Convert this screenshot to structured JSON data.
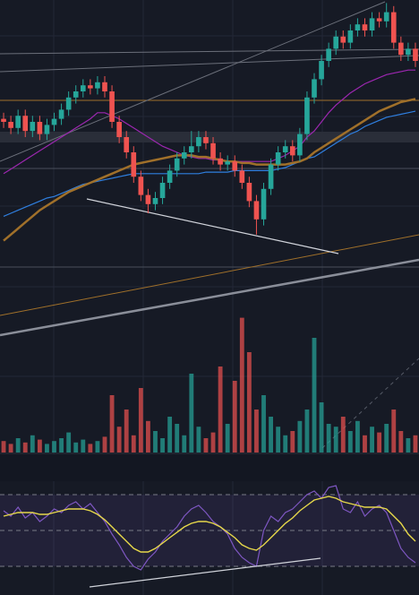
{
  "chart_data": {
    "type": "candlestick",
    "up_color": "#26a69a",
    "down_color": "#ef5350",
    "ylim": [
      0,
      100
    ],
    "open": [
      61,
      60,
      58,
      62,
      57,
      60,
      56,
      59,
      61,
      64,
      68,
      70,
      72,
      71,
      73,
      70,
      60,
      55,
      50,
      42,
      36,
      33,
      35,
      40,
      44,
      48,
      50,
      52,
      55,
      53,
      48,
      46,
      47,
      44,
      40,
      34,
      28,
      38,
      46,
      50,
      52,
      49,
      56,
      68,
      74,
      80,
      84,
      88,
      86,
      90,
      92,
      90,
      94,
      93,
      96,
      86,
      82,
      84
    ],
    "high": [
      63,
      62,
      64,
      64,
      62,
      62,
      61,
      63,
      66,
      70,
      72,
      74,
      74,
      75,
      75,
      72,
      62,
      57,
      52,
      44,
      38,
      37,
      42,
      46,
      50,
      52,
      57,
      57,
      57,
      55,
      50,
      49,
      49,
      46,
      42,
      36,
      40,
      48,
      52,
      54,
      54,
      58,
      70,
      76,
      82,
      86,
      90,
      90,
      92,
      94,
      94,
      96,
      96,
      99,
      98,
      88,
      86,
      86
    ],
    "low": [
      58,
      56,
      56,
      55,
      55,
      54,
      54,
      57,
      59,
      62,
      66,
      68,
      69,
      69,
      68,
      58,
      53,
      48,
      40,
      34,
      30,
      31,
      33,
      38,
      42,
      46,
      48,
      50,
      51,
      46,
      44,
      44,
      42,
      38,
      32,
      23,
      26,
      36,
      44,
      48,
      47,
      47,
      54,
      66,
      72,
      78,
      82,
      84,
      84,
      88,
      88,
      88,
      91,
      91,
      84,
      80,
      80,
      78
    ],
    "close": [
      60,
      58,
      62,
      57,
      60,
      56,
      59,
      61,
      64,
      68,
      70,
      72,
      71,
      73,
      70,
      60,
      55,
      50,
      42,
      36,
      33,
      35,
      40,
      44,
      48,
      50,
      52,
      55,
      53,
      48,
      46,
      47,
      44,
      40,
      34,
      28,
      38,
      46,
      50,
      52,
      49,
      56,
      68,
      74,
      80,
      84,
      88,
      86,
      90,
      92,
      90,
      94,
      93,
      96,
      86,
      82,
      84,
      80
    ],
    "series": [
      {
        "color": "#9c27b0",
        "values": [
          43,
          44.5,
          46,
          47.5,
          49,
          50.5,
          52,
          53.5,
          55,
          56.5,
          58,
          59.5,
          61,
          63,
          63,
          62,
          61,
          59.5,
          58,
          56.5,
          55,
          53.5,
          52,
          51,
          50,
          49,
          48.5,
          48,
          48,
          47.5,
          47.5,
          47,
          47,
          47,
          47,
          47,
          47,
          47,
          48,
          49,
          50.5,
          52,
          55,
          57,
          60,
          63,
          65.5,
          67.5,
          69.5,
          71,
          72.5,
          73.5,
          74.5,
          75.5,
          76,
          76.5,
          77,
          77
        ]
      },
      {
        "color": "#2f7fe0",
        "values": [
          29,
          30,
          31,
          32,
          33,
          34,
          35,
          35.5,
          36.5,
          37.5,
          38.5,
          39.5,
          40,
          40.5,
          41,
          41.5,
          42,
          42.5,
          43,
          43,
          43,
          43,
          43,
          43,
          43,
          43,
          43,
          43,
          43.5,
          43.5,
          43.5,
          43.5,
          44,
          44,
          44,
          44,
          44,
          44,
          44.5,
          45,
          46,
          47,
          48,
          48.5,
          50,
          51.5,
          53,
          54.5,
          56,
          57,
          58.5,
          59.5,
          60.5,
          61.5,
          62,
          62.5,
          63,
          63.5
        ]
      },
      {
        "color": "#a0702a",
        "values": [
          21,
          23,
          25,
          27,
          29,
          31,
          32.5,
          34,
          35.5,
          37,
          38,
          39,
          40,
          41,
          42,
          43,
          44,
          45,
          46,
          46.5,
          47,
          47.5,
          48,
          48.5,
          49,
          49,
          49,
          48.5,
          48.5,
          48,
          47.5,
          47,
          47,
          46.5,
          46.5,
          46,
          46,
          46,
          46,
          46,
          46.5,
          47,
          48,
          50,
          51.5,
          53,
          54.5,
          56,
          57.5,
          59,
          60.5,
          62,
          63.5,
          64.5,
          65.5,
          66.5,
          67,
          67.5
        ]
      }
    ],
    "volume": {
      "ylim": [
        0,
        100
      ],
      "values": [
        8,
        6,
        10,
        7,
        12,
        9,
        6,
        8,
        10,
        14,
        7,
        9,
        6,
        8,
        11,
        40,
        18,
        30,
        12,
        45,
        22,
        15,
        10,
        25,
        20,
        12,
        55,
        18,
        10,
        14,
        60,
        20,
        50,
        94,
        70,
        30,
        40,
        25,
        18,
        12,
        15,
        22,
        30,
        80,
        35,
        20,
        18,
        25,
        15,
        22,
        12,
        18,
        14,
        20,
        30,
        15,
        10,
        12
      ]
    },
    "rsi": {
      "ylim": [
        14,
        76
      ],
      "levels": [
        30,
        50,
        70
      ],
      "color": "#7e57c2",
      "signal_color": "#e6d84a",
      "values": [
        61,
        58,
        63,
        57,
        60,
        55,
        58,
        62,
        60,
        64,
        66,
        62,
        65,
        60,
        55,
        48,
        42,
        35,
        30,
        28,
        34,
        38,
        44,
        48,
        52,
        58,
        62,
        64,
        60,
        55,
        52,
        48,
        40,
        35,
        32,
        30,
        50,
        58,
        55,
        60,
        62,
        66,
        70,
        72,
        68,
        74,
        75,
        62,
        60,
        66,
        58,
        62,
        64,
        60,
        50,
        40,
        35,
        32
      ],
      "signal": [
        58,
        59,
        60,
        60,
        60,
        59,
        59,
        60,
        61,
        62,
        62,
        62,
        61,
        59,
        56,
        52,
        48,
        44,
        40,
        38,
        38,
        40,
        43,
        46,
        49,
        52,
        54,
        55,
        55,
        54,
        52,
        49,
        46,
        42,
        40,
        39,
        42,
        46,
        50,
        54,
        57,
        61,
        64,
        67,
        68,
        69,
        68,
        66,
        65,
        64,
        63,
        63,
        63,
        62,
        58,
        54,
        48,
        44
      ]
    }
  }
}
